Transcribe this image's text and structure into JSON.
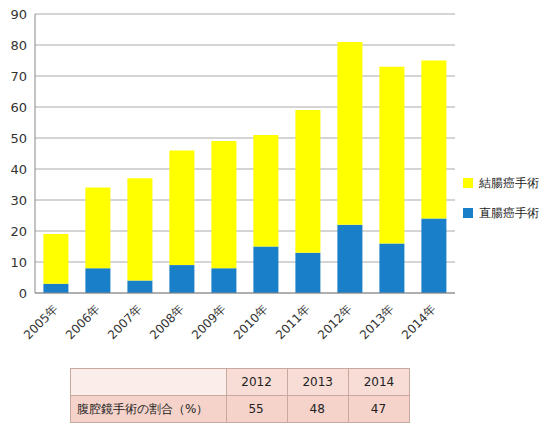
{
  "chart_data": {
    "type": "bar",
    "stacked": true,
    "grid": true,
    "legend": "right",
    "categories": [
      "2005年",
      "2006年",
      "2007年",
      "2008年",
      "2009年",
      "2010年",
      "2011年",
      "2012年",
      "2013年",
      "2014年"
    ],
    "series": [
      {
        "name": "直腸癌手術",
        "color": "#1a7fc9",
        "values": [
          3,
          8,
          4,
          9,
          8,
          15,
          13,
          22,
          16,
          24
        ]
      },
      {
        "name": "結腸癌手術",
        "color": "#ffff00",
        "values": [
          16,
          26,
          33,
          37,
          41,
          36,
          46,
          59,
          57,
          51
        ]
      }
    ],
    "ylim": [
      0,
      90
    ],
    "yticks": [
      0,
      10,
      20,
      30,
      40,
      50,
      60,
      70,
      80,
      90
    ]
  },
  "table": {
    "header": [
      "",
      "2012",
      "2013",
      "2014"
    ],
    "rows": [
      [
        "腹腔鏡手術の割合（%）",
        55,
        48,
        47
      ]
    ]
  }
}
